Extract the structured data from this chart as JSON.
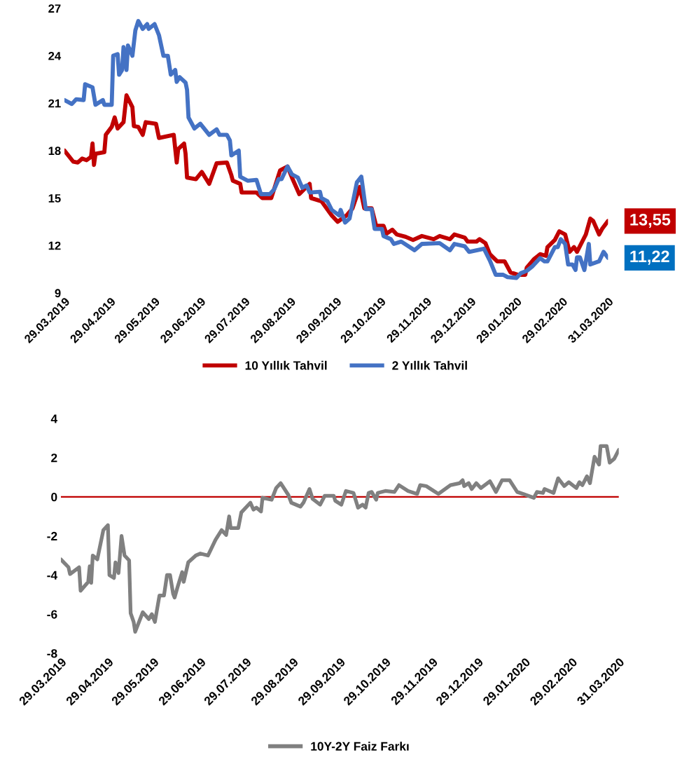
{
  "chart_data": [
    {
      "type": "line",
      "legend": "bottom",
      "grid": false,
      "marker": "none",
      "line_style": "solid",
      "xlim": [
        "2019-03-29",
        "2020-03-31"
      ],
      "ylim": [
        9,
        27
      ],
      "yticks": [
        9,
        12,
        15,
        18,
        21,
        24,
        27
      ],
      "xticks": [
        {
          "value": "2019-03-29",
          "label": "29.03.2019"
        },
        {
          "value": "2019-04-29",
          "label": "29.04.2019"
        },
        {
          "value": "2019-05-29",
          "label": "29.05.2019"
        },
        {
          "value": "2019-06-29",
          "label": "29.06.2019"
        },
        {
          "value": "2019-07-29",
          "label": "29.07.2019"
        },
        {
          "value": "2019-08-29",
          "label": "29.08.2019"
        },
        {
          "value": "2019-09-29",
          "label": "29.09.2019"
        },
        {
          "value": "2019-10-29",
          "label": "29.10.2019"
        },
        {
          "value": "2019-11-29",
          "label": "29.11.2019"
        },
        {
          "value": "2019-12-29",
          "label": "29.12.2019"
        },
        {
          "value": "2020-01-29",
          "label": "29.01.2020"
        },
        {
          "value": "2020-02-29",
          "label": "29.02.2020"
        },
        {
          "value": "2020-03-31",
          "label": "31.03.2020"
        }
      ],
      "annotations": [
        {
          "text": "13,55",
          "x": "2020-03-31",
          "y": 13.55
        },
        {
          "text": "11,22",
          "x": "2020-03-31",
          "y": 11.22
        }
      ],
      "series": [
        {
          "name": "10 Yıllık Tahvil",
          "color": "#c00000",
          "x": [
            "2019-03-29",
            "2019-04-04",
            "2019-04-07",
            "2019-04-10",
            "2019-04-13",
            "2019-04-16",
            "2019-04-17",
            "2019-04-18",
            "2019-04-19",
            "2019-04-25",
            "2019-04-26",
            "2019-04-30",
            "2019-05-02",
            "2019-05-04",
            "2019-05-08",
            "2019-05-10",
            "2019-05-14",
            "2019-05-15",
            "2019-05-18",
            "2019-05-21",
            "2019-05-23",
            "2019-05-30",
            "2019-06-01",
            "2019-06-11",
            "2019-06-13",
            "2019-06-14",
            "2019-06-18",
            "2019-06-19",
            "2019-06-20",
            "2019-06-26",
            "2019-06-30",
            "2019-07-05",
            "2019-07-10",
            "2019-07-17",
            "2019-07-20",
            "2019-07-21",
            "2019-07-26",
            "2019-07-27",
            "2019-08-06",
            "2019-08-10",
            "2019-08-16",
            "2019-08-22",
            "2019-08-27",
            "2019-08-30",
            "2019-09-04",
            "2019-09-11",
            "2019-09-12",
            "2019-09-19",
            "2019-09-26",
            "2019-09-30",
            "2019-10-06",
            "2019-10-10",
            "2019-10-15",
            "2019-10-18",
            "2019-10-23",
            "2019-10-26",
            "2019-10-31",
            "2019-11-02",
            "2019-11-06",
            "2019-11-09",
            "2019-11-15",
            "2019-11-20",
            "2019-11-26",
            "2019-12-04",
            "2019-12-08",
            "2019-12-15",
            "2019-12-18",
            "2019-12-25",
            "2019-12-27",
            "2020-01-02",
            "2020-01-04",
            "2020-01-08",
            "2020-01-11",
            "2020-01-16",
            "2020-01-21",
            "2020-01-25",
            "2020-01-30",
            "2020-02-04",
            "2020-02-05",
            "2020-02-10",
            "2020-02-14",
            "2020-02-18",
            "2020-02-19",
            "2020-02-24",
            "2020-02-27",
            "2020-03-02",
            "2020-03-05",
            "2020-03-08",
            "2020-03-10",
            "2020-03-16",
            "2020-03-19",
            "2020-03-21",
            "2020-03-25",
            "2020-03-27",
            "2020-03-31"
          ],
          "values": [
            18.0,
            17.3,
            17.25,
            17.5,
            17.4,
            17.6,
            18.45,
            17.1,
            17.8,
            17.9,
            19.0,
            19.5,
            20.1,
            19.4,
            19.8,
            21.5,
            20.75,
            19.55,
            19.5,
            19.0,
            19.8,
            19.7,
            18.8,
            19.0,
            17.25,
            18.1,
            18.45,
            17.8,
            16.3,
            16.2,
            16.65,
            15.9,
            17.2,
            17.25,
            16.45,
            16.1,
            15.9,
            15.35,
            15.35,
            15.0,
            15.0,
            16.75,
            17.0,
            16.3,
            15.25,
            15.9,
            15.0,
            14.8,
            13.9,
            13.5,
            13.9,
            14.35,
            15.7,
            14.35,
            14.35,
            13.25,
            13.25,
            12.75,
            13.0,
            12.7,
            12.55,
            12.35,
            12.6,
            12.4,
            12.6,
            12.4,
            12.7,
            12.5,
            12.25,
            12.25,
            12.4,
            12.15,
            11.45,
            11.0,
            11.0,
            10.3,
            10.15,
            10.15,
            10.6,
            11.15,
            11.45,
            11.35,
            11.9,
            12.35,
            12.9,
            12.7,
            11.6,
            11.9,
            11.6,
            12.7,
            13.7,
            13.55,
            12.7,
            13.05,
            13.55
          ]
        },
        {
          "name": "2 Yıllık Tahvil",
          "color": "#4472c4",
          "x": [
            "2019-03-29",
            "2019-04-03",
            "2019-04-06",
            "2019-04-11",
            "2019-04-12",
            "2019-04-17",
            "2019-04-19",
            "2019-04-24",
            "2019-04-25",
            "2019-04-30",
            "2019-05-01",
            "2019-05-04",
            "2019-05-05",
            "2019-05-07",
            "2019-05-08",
            "2019-05-10",
            "2019-05-11",
            "2019-05-14",
            "2019-05-16",
            "2019-05-18",
            "2019-05-21",
            "2019-05-24",
            "2019-05-25",
            "2019-05-29",
            "2019-06-01",
            "2019-06-04",
            "2019-06-07",
            "2019-06-09",
            "2019-06-12",
            "2019-06-13",
            "2019-06-15",
            "2019-06-19",
            "2019-06-20",
            "2019-06-21",
            "2019-06-25",
            "2019-06-29",
            "2019-07-05",
            "2019-07-10",
            "2019-07-12",
            "2019-07-17",
            "2019-07-19",
            "2019-07-20",
            "2019-07-25",
            "2019-07-26",
            "2019-07-31",
            "2019-08-06",
            "2019-08-09",
            "2019-08-15",
            "2019-08-18",
            "2019-08-21",
            "2019-08-23",
            "2019-08-27",
            "2019-08-30",
            "2019-09-03",
            "2019-09-06",
            "2019-09-09",
            "2019-09-11",
            "2019-09-18",
            "2019-09-19",
            "2019-09-23",
            "2019-09-26",
            "2019-10-01",
            "2019-10-02",
            "2019-10-05",
            "2019-10-08",
            "2019-10-13",
            "2019-10-16",
            "2019-10-19",
            "2019-10-23",
            "2019-10-25",
            "2019-10-30",
            "2019-10-31",
            "2019-11-05",
            "2019-11-07",
            "2019-11-12",
            "2019-11-21",
            "2019-11-26",
            "2019-12-08",
            "2019-12-15",
            "2019-12-18",
            "2019-12-25",
            "2019-12-28",
            "2020-01-02",
            "2020-01-07",
            "2020-01-11",
            "2020-01-15",
            "2020-01-20",
            "2020-01-23",
            "2020-01-29",
            "2020-02-01",
            "2020-02-05",
            "2020-02-09",
            "2020-02-14",
            "2020-02-17",
            "2020-02-19",
            "2020-02-24",
            "2020-02-26",
            "2020-02-28",
            "2020-03-02",
            "2020-03-04",
            "2020-03-07",
            "2020-03-09",
            "2020-03-10",
            "2020-03-12",
            "2020-03-15",
            "2020-03-18",
            "2020-03-19",
            "2020-03-25",
            "2020-03-28",
            "2020-03-31"
          ],
          "values": [
            21.2,
            20.95,
            21.25,
            21.2,
            22.2,
            22.0,
            20.9,
            21.2,
            20.9,
            20.9,
            24.0,
            24.1,
            22.8,
            23.1,
            24.55,
            23.1,
            24.65,
            24.0,
            25.6,
            26.2,
            25.7,
            26.0,
            25.7,
            26.0,
            25.3,
            24.0,
            24.0,
            22.8,
            23.1,
            22.35,
            22.65,
            22.3,
            21.85,
            20.1,
            19.4,
            19.7,
            19.0,
            19.35,
            19.0,
            19.0,
            18.65,
            17.7,
            18.0,
            16.35,
            16.1,
            16.15,
            15.25,
            15.25,
            15.55,
            16.2,
            16.2,
            17.0,
            16.5,
            16.3,
            15.65,
            15.8,
            15.35,
            15.4,
            15.0,
            14.8,
            14.25,
            13.9,
            14.25,
            13.45,
            13.7,
            16.0,
            16.35,
            14.3,
            14.3,
            13.05,
            13.05,
            12.6,
            12.4,
            12.1,
            12.25,
            11.7,
            12.1,
            12.15,
            11.7,
            12.1,
            11.95,
            11.6,
            11.7,
            11.8,
            11.05,
            10.15,
            10.15,
            10.0,
            9.95,
            10.25,
            10.4,
            10.7,
            11.2,
            11.0,
            11.0,
            11.9,
            11.9,
            12.4,
            12.1,
            10.8,
            10.8,
            10.45,
            11.25,
            11.25,
            10.45,
            12.1,
            10.8,
            11.0,
            11.6,
            11.22
          ]
        }
      ]
    },
    {
      "type": "line",
      "legend": "bottom",
      "grid": false,
      "marker": "none",
      "line_style": "solid",
      "xlim": [
        "2019-03-29",
        "2020-03-31"
      ],
      "ylim": [
        -8,
        4
      ],
      "yticks": [
        -8,
        -6,
        -4,
        -2,
        0,
        2,
        4
      ],
      "xticks": [
        {
          "value": "2019-03-29",
          "label": "29.03.2019"
        },
        {
          "value": "2019-04-29",
          "label": "29.04.2019"
        },
        {
          "value": "2019-05-29",
          "label": "29.05.2019"
        },
        {
          "value": "2019-06-29",
          "label": "29.06.2019"
        },
        {
          "value": "2019-07-29",
          "label": "29.07.2019"
        },
        {
          "value": "2019-08-29",
          "label": "29.08.2019"
        },
        {
          "value": "2019-09-29",
          "label": "29.09.2019"
        },
        {
          "value": "2019-10-29",
          "label": "29.10.2019"
        },
        {
          "value": "2019-11-29",
          "label": "29.11.2019"
        },
        {
          "value": "2019-12-29",
          "label": "29.12.2019"
        },
        {
          "value": "2020-01-29",
          "label": "29.01.2020"
        },
        {
          "value": "2020-02-29",
          "label": "29.02.2020"
        },
        {
          "value": "2020-03-31",
          "label": "31.03.2020"
        }
      ],
      "ref_lines": [
        {
          "axis": "y",
          "value": 0,
          "color": "#c00000",
          "line_style": "solid"
        }
      ],
      "series": [
        {
          "name": "10Y-2Y Faiz Farkı",
          "color": "#808080",
          "x": [
            "2019-03-29",
            "2019-04-03",
            "2019-04-04",
            "2019-04-10",
            "2019-04-11",
            "2019-04-16",
            "2019-04-17",
            "2019-04-18",
            "2019-04-19",
            "2019-04-22",
            "2019-04-26",
            "2019-04-29",
            "2019-04-30",
            "2019-05-03",
            "2019-05-04",
            "2019-05-06",
            "2019-05-08",
            "2019-05-10",
            "2019-05-13",
            "2019-05-14",
            "2019-05-16",
            "2019-05-17",
            "2019-05-22",
            "2019-05-26",
            "2019-05-28",
            "2019-05-30",
            "2019-06-02",
            "2019-06-05",
            "2019-06-07",
            "2019-06-09",
            "2019-06-11",
            "2019-06-12",
            "2019-06-14",
            "2019-06-17",
            "2019-06-18",
            "2019-06-21",
            "2019-06-26",
            "2019-06-29",
            "2019-07-04",
            "2019-07-09",
            "2019-07-13",
            "2019-07-16",
            "2019-07-18",
            "2019-07-19",
            "2019-07-24",
            "2019-07-26",
            "2019-08-01",
            "2019-08-03",
            "2019-08-05",
            "2019-08-08",
            "2019-08-09",
            "2019-08-15",
            "2019-08-18",
            "2019-08-21",
            "2019-08-26",
            "2019-08-28",
            "2019-09-03",
            "2019-09-05",
            "2019-09-09",
            "2019-09-11",
            "2019-09-16",
            "2019-09-19",
            "2019-09-25",
            "2019-09-26",
            "2019-09-30",
            "2019-10-03",
            "2019-10-08",
            "2019-10-11",
            "2019-10-14",
            "2019-10-16",
            "2019-10-18",
            "2019-10-20",
            "2019-10-23",
            "2019-10-24",
            "2019-10-29",
            "2019-11-04",
            "2019-11-07",
            "2019-11-13",
            "2019-11-19",
            "2019-11-21",
            "2019-11-25",
            "2019-11-30",
            "2019-12-03",
            "2019-12-11",
            "2019-12-17",
            "2019-12-19",
            "2019-12-20",
            "2019-12-23",
            "2019-12-25",
            "2019-12-28",
            "2019-12-31",
            "2020-01-06",
            "2020-01-10",
            "2020-01-14",
            "2020-01-19",
            "2020-01-24",
            "2020-01-28",
            "2020-02-04",
            "2020-02-06",
            "2020-02-10",
            "2020-02-11",
            "2020-02-17",
            "2020-02-20",
            "2020-02-24",
            "2020-02-27",
            "2020-03-03",
            "2020-03-05",
            "2020-03-07",
            "2020-03-10",
            "2020-03-12",
            "2020-03-15",
            "2020-03-18",
            "2020-03-19",
            "2020-03-23",
            "2020-03-25",
            "2020-03-28",
            "2020-03-31"
          ],
          "values": [
            -3.2,
            -3.6,
            -3.95,
            -3.6,
            -4.8,
            -4.35,
            -3.55,
            -4.4,
            -3.0,
            -3.2,
            -1.7,
            -1.45,
            -4.0,
            -4.15,
            -3.35,
            -3.9,
            -2.0,
            -3.0,
            -3.25,
            -5.95,
            -6.4,
            -6.9,
            -5.9,
            -6.25,
            -6.0,
            -6.4,
            -5.05,
            -5.05,
            -4.0,
            -4.0,
            -4.95,
            -5.15,
            -4.6,
            -3.85,
            -4.35,
            -3.35,
            -3.0,
            -2.9,
            -3.0,
            -2.2,
            -1.7,
            -1.95,
            -1.0,
            -1.6,
            -1.6,
            -0.8,
            -0.3,
            -0.65,
            -0.55,
            -0.75,
            -0.05,
            -0.15,
            0.45,
            0.7,
            0.1,
            -0.3,
            -0.5,
            -0.3,
            0.4,
            -0.1,
            -0.4,
            0.05,
            0.05,
            -0.2,
            -0.4,
            0.3,
            0.2,
            -0.55,
            -0.4,
            -0.55,
            0.2,
            0.25,
            -0.15,
            0.2,
            0.3,
            0.25,
            0.6,
            0.3,
            0.15,
            0.6,
            0.55,
            0.3,
            0.15,
            0.6,
            0.7,
            0.85,
            0.55,
            0.7,
            0.4,
            0.7,
            0.45,
            0.8,
            0.25,
            0.85,
            0.85,
            0.25,
            0.15,
            -0.05,
            0.25,
            0.2,
            0.4,
            0.2,
            0.95,
            0.55,
            0.75,
            0.45,
            0.75,
            0.6,
            1.05,
            0.7,
            2.05,
            1.65,
            2.6,
            2.6,
            1.75,
            1.95,
            2.4
          ]
        }
      ]
    }
  ]
}
